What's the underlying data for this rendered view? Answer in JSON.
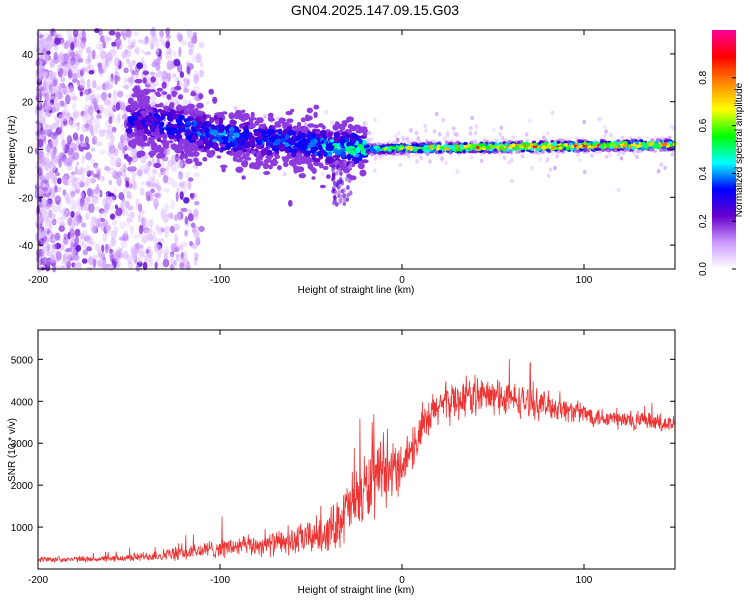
{
  "title": "GN04.2025.147.09.15.G03",
  "chart_data": [
    {
      "type": "heatmap",
      "xlabel": "Height of straight line (km)",
      "ylabel": "Frequency (Hz)",
      "xlim": [
        -200,
        150
      ],
      "ylim": [
        -50,
        50
      ],
      "x_ticks": [
        "-200",
        "-100",
        "0",
        "100"
      ],
      "y_ticks": [
        "-40",
        "-20",
        "0",
        "20",
        "40"
      ],
      "colorbar": {
        "label": "Normalized spectral amplitude",
        "range": [
          0,
          1
        ],
        "ticks": [
          "0.0",
          "0.2",
          "0.4",
          "0.6",
          "0.8"
        ],
        "colors": [
          "#ffffff",
          "#cc99ff",
          "#6600cc",
          "#0000ff",
          "#00ffff",
          "#00ff00",
          "#ffff00",
          "#ff8800",
          "#ff0000",
          "#ff0099"
        ]
      },
      "ridge": {
        "x": [
          -145,
          -120,
          -100,
          -80,
          -60,
          -45,
          -30,
          -15,
          0,
          50,
          100,
          150
        ],
        "frequency_hz": [
          12,
          9,
          6,
          4,
          3,
          1.5,
          0.5,
          0,
          0.5,
          1,
          1.5,
          2
        ],
        "peak_amplitude": [
          0.35,
          0.4,
          0.45,
          0.4,
          0.45,
          0.5,
          0.55,
          0.65,
          0.75,
          0.9,
          0.95,
          0.9
        ]
      }
    },
    {
      "type": "line",
      "xlabel": "Height of straight line (km)",
      "ylabel": "SNR (10 * v/v)",
      "xlim": [
        -200,
        150
      ],
      "ylim": [
        0,
        5700
      ],
      "x_ticks": [
        "-200",
        "-100",
        "0",
        "100"
      ],
      "y_ticks": [
        "1000",
        "2000",
        "3000",
        "4000",
        "5000"
      ],
      "color": "#ee3333",
      "envelope_x": [
        -200,
        -180,
        -160,
        -140,
        -120,
        -100,
        -80,
        -60,
        -40,
        -30,
        -20,
        -10,
        0,
        10,
        20,
        40,
        60,
        80,
        100,
        120,
        150
      ],
      "envelope_mean": [
        230,
        230,
        240,
        300,
        380,
        500,
        560,
        650,
        900,
        1400,
        1900,
        2200,
        2500,
        3200,
        3900,
        4150,
        4050,
        3900,
        3700,
        3550,
        3450
      ],
      "envelope_spread": [
        80,
        80,
        90,
        140,
        220,
        280,
        300,
        400,
        600,
        900,
        1100,
        900,
        700,
        600,
        600,
        550,
        500,
        400,
        300,
        300,
        250
      ]
    }
  ]
}
